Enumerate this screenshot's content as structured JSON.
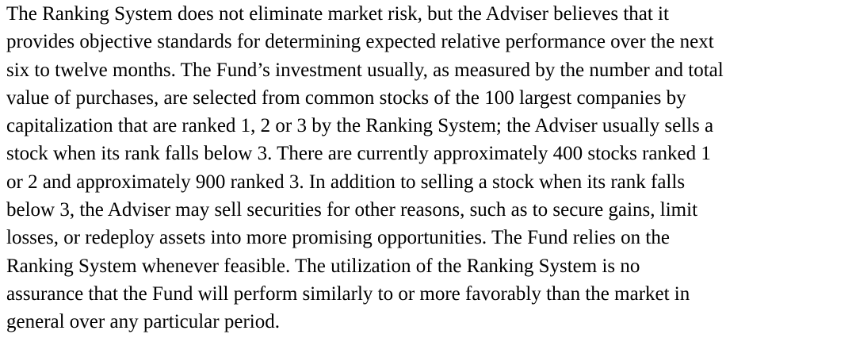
{
  "paragraph": {
    "lines": [
      "The Ranking System does not eliminate market risk, but the Adviser believes that it",
      "provides objective standards for determining expected relative performance over the next",
      "six to twelve months. The Fund’s investment usually, as measured by the number and total",
      "value of purchases, are selected from common stocks of the 100 largest companies by",
      "capitalization that are ranked 1, 2 or 3 by the Ranking System; the Adviser usually sells a",
      "stock when its rank falls below 3. There are currently approximately 400 stocks ranked 1",
      "or 2 and approximately 900 ranked 3. In addition to selling a stock when its rank falls",
      "below 3, the Adviser may sell securities for other reasons, such as to secure gains, limit",
      "losses, or redeploy assets into more promising opportunities. The Fund relies on the",
      "Ranking System whenever feasible. The utilization of the Ranking System is no",
      "assurance that the Fund will perform similarly to or more favorably than the market in",
      "general over any particular period."
    ]
  }
}
